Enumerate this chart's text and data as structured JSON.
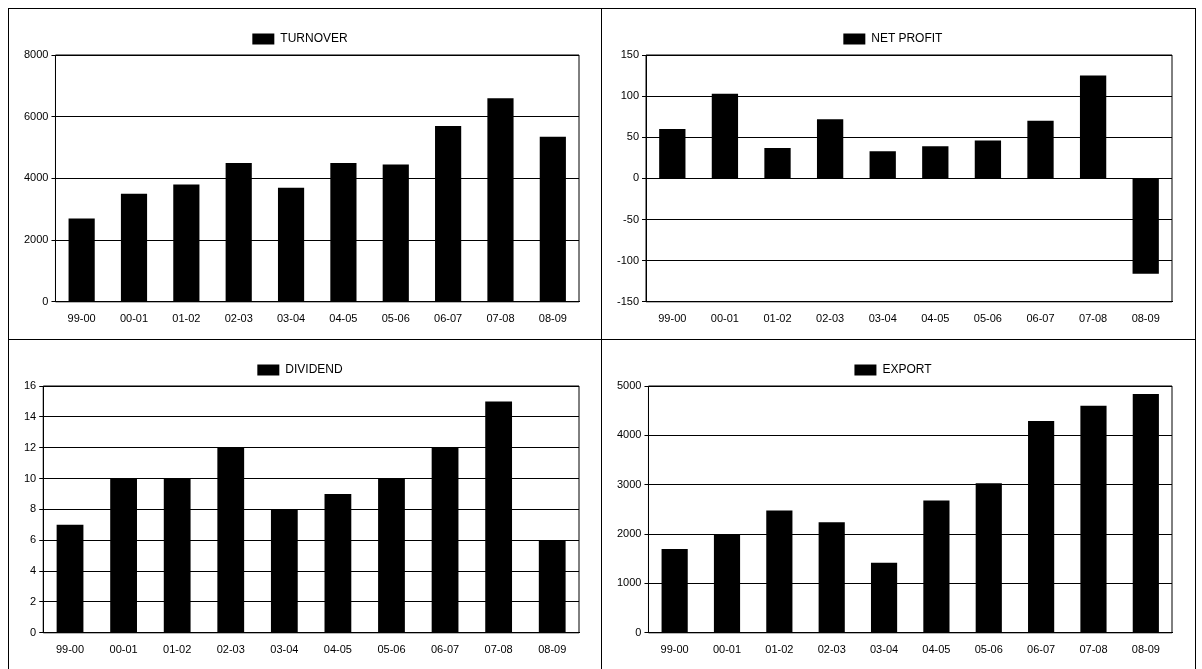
{
  "chart_data": [
    {
      "type": "bar",
      "categories": [
        "99-00",
        "00-01",
        "01-02",
        "02-03",
        "03-04",
        "04-05",
        "05-06",
        "06-07",
        "07-08",
        "08-09"
      ],
      "series": [
        {
          "name": "TURNOVER",
          "color": "#000000",
          "values": [
            2700,
            3500,
            3800,
            4500,
            3700,
            4500,
            4450,
            5700,
            6600,
            5350
          ]
        }
      ],
      "ylim": [
        0,
        8000
      ],
      "yticks": [
        0,
        2000,
        4000,
        6000,
        8000
      ],
      "grid": "y",
      "legend": "top"
    },
    {
      "type": "bar",
      "categories": [
        "99-00",
        "00-01",
        "01-02",
        "02-03",
        "03-04",
        "04-05",
        "05-06",
        "06-07",
        "07-08",
        "08-09"
      ],
      "series": [
        {
          "name": "NET PROFIT",
          "color": "#000000",
          "values": [
            60,
            103,
            37,
            72,
            33,
            39,
            46,
            70,
            125,
            -116
          ]
        }
      ],
      "ylim": [
        -150,
        150
      ],
      "yticks": [
        -150,
        -100,
        -50,
        0,
        50,
        100,
        150
      ],
      "grid": "y",
      "legend": "top"
    },
    {
      "type": "bar",
      "categories": [
        "99-00",
        "00-01",
        "01-02",
        "02-03",
        "03-04",
        "04-05",
        "05-06",
        "06-07",
        "07-08",
        "08-09"
      ],
      "series": [
        {
          "name": "DIVIDEND",
          "color": "#000000",
          "values": [
            7,
            10,
            10,
            12,
            8,
            9,
            10,
            12,
            15,
            6
          ]
        }
      ],
      "ylim": [
        0,
        16
      ],
      "yticks": [
        0,
        2,
        4,
        6,
        8,
        10,
        12,
        14,
        16
      ],
      "grid": "y",
      "legend": "top"
    },
    {
      "type": "bar",
      "categories": [
        "99-00",
        "00-01",
        "01-02",
        "02-03",
        "03-04",
        "04-05",
        "05-06",
        "06-07",
        "07-08",
        "08-09"
      ],
      "series": [
        {
          "name": "EXPORT",
          "color": "#000000",
          "values": [
            1700,
            2000,
            2480,
            2240,
            1420,
            2680,
            3030,
            4290,
            4600,
            4840
          ]
        }
      ],
      "ylim": [
        0,
        5000
      ],
      "yticks": [
        0,
        1000,
        2000,
        3000,
        4000,
        5000
      ],
      "grid": "y",
      "legend": "top"
    }
  ]
}
